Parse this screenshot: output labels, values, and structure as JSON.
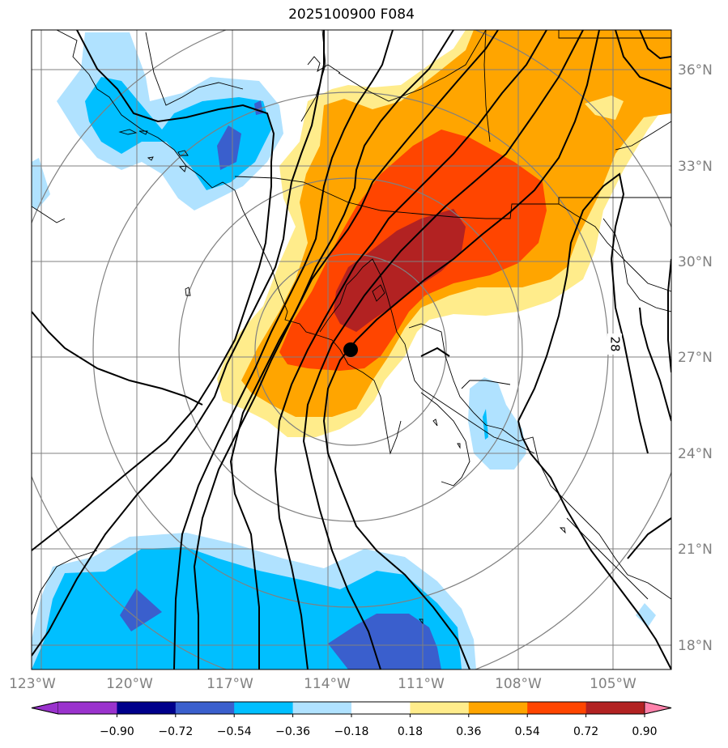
{
  "title": "2025100900 F084",
  "lon_labels": [
    "123°W",
    "120°W",
    "117°W",
    "114°W",
    "111°W",
    "108°W",
    "105°W"
  ],
  "lat_labels": [
    "36°N",
    "33°N",
    "30°N",
    "27°N",
    "24°N",
    "21°N",
    "18°N"
  ],
  "contour_label": "28",
  "colorbar": {
    "labels": [
      "−0.90",
      "−0.72",
      "−0.54",
      "−0.36",
      "−0.18",
      "0.18",
      "0.36",
      "0.54",
      "0.72",
      "0.90"
    ],
    "colors": [
      "#9a32cd",
      "#00008b",
      "#3a5fcd",
      "#00bfff",
      "#b0e2ff",
      "#ffffff",
      "#ffec8b",
      "#ffa500",
      "#ff4500",
      "#b22222"
    ],
    "under_color": "#9a32cd",
    "over_color": "#ff82ab"
  },
  "map": {
    "land_lines": "coastlines and borders",
    "marker": "storm-center"
  }
}
